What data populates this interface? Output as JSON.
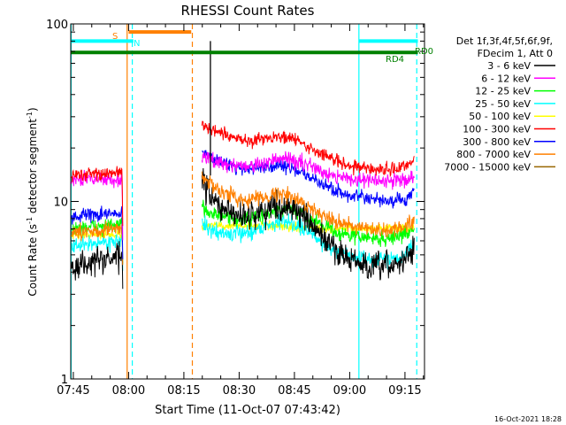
{
  "chart_data": {
    "type": "line",
    "title": "RHESSI Count Rates",
    "xlabel": "Start Time (11-Oct-07 07:43:42)",
    "ylabel_main": "Count Rate (s",
    "ylabel_sup1": "-1",
    "ylabel_mid": " detector segment",
    "ylabel_sup2": "-1",
    "ylabel_end": ")",
    "yscale": "log",
    "ylim": [
      1,
      100
    ],
    "xlim_minutes": [
      -0.7,
      95.3
    ],
    "x_ticks": [
      {
        "label": "07:45",
        "minute": 0
      },
      {
        "label": "08:00",
        "minute": 15
      },
      {
        "label": "08:15",
        "minute": 30
      },
      {
        "label": "08:30",
        "minute": 45
      },
      {
        "label": "08:45",
        "minute": 60
      },
      {
        "label": "09:00",
        "minute": 75
      },
      {
        "label": "09:15",
        "minute": 90
      }
    ],
    "y_ticks": [
      {
        "label": "1",
        "value": 1
      },
      {
        "label": "10",
        "value": 10
      },
      {
        "label": "100",
        "value": 100
      }
    ],
    "legend": {
      "position": "top-right",
      "header1": "Det 1f,3f,4f,5f,6f,9f,",
      "header2": "FDecim 1, Att 0"
    },
    "series": [
      {
        "name": "3 - 6 keV",
        "color": "#000000",
        "base": 5.0,
        "noise": 0.13,
        "points": [
          [
            -0.5,
            4.2
          ],
          [
            5,
            4.6
          ],
          [
            12,
            4.8
          ],
          [
            13.2,
            5.0
          ],
          [
            13.5,
            2.7
          ],
          [
            17.5,
            null
          ],
          [
            34.8,
            13.5
          ],
          [
            36,
            12
          ],
          [
            38,
            10
          ],
          [
            42,
            8.6
          ],
          [
            48,
            8.3
          ],
          [
            54,
            9.3
          ],
          [
            58,
            9.5
          ],
          [
            61,
            8.8
          ],
          [
            65,
            7.1
          ],
          [
            70,
            5.6
          ],
          [
            75,
            4.7
          ],
          [
            80,
            4.2
          ],
          [
            85,
            4.3
          ],
          [
            89,
            4.5
          ],
          [
            91.5,
            5.2
          ],
          [
            92.6,
            5.6
          ]
        ]
      },
      {
        "name": "6 - 12 keV",
        "color": "#ff00ff",
        "base": 13.0,
        "noise": 0.07,
        "points": [
          [
            -0.5,
            13.2
          ],
          [
            5,
            13.5
          ],
          [
            12,
            13.2
          ],
          [
            13.2,
            13.5
          ],
          [
            13.5,
            3.6
          ],
          [
            17.5,
            null
          ],
          [
            34.8,
            18
          ],
          [
            37,
            17.2
          ],
          [
            42,
            16.2
          ],
          [
            48,
            15.8
          ],
          [
            54,
            16.8
          ],
          [
            58,
            17.4
          ],
          [
            62,
            16.5
          ],
          [
            67,
            15
          ],
          [
            72,
            13.8
          ],
          [
            78,
            13.2
          ],
          [
            84,
            12.9
          ],
          [
            90,
            13.3
          ],
          [
            92.6,
            14
          ]
        ]
      },
      {
        "name": "12 - 25 keV",
        "color": "#00ff00",
        "base": 7.5,
        "noise": 0.07,
        "points": [
          [
            -0.5,
            7.0
          ],
          [
            5,
            7.2
          ],
          [
            12,
            7.3
          ],
          [
            13.2,
            7.4
          ],
          [
            13.5,
            3.4
          ],
          [
            17.5,
            null
          ],
          [
            34.8,
            9.5
          ],
          [
            37,
            8.7
          ],
          [
            42,
            8.0
          ],
          [
            48,
            7.9
          ],
          [
            54,
            8.7
          ],
          [
            58,
            9.0
          ],
          [
            62,
            8.5
          ],
          [
            67,
            7.6
          ],
          [
            72,
            6.6
          ],
          [
            78,
            6.3
          ],
          [
            84,
            6.1
          ],
          [
            90,
            6.5
          ],
          [
            92.6,
            7.2
          ]
        ]
      },
      {
        "name": "25 - 50 keV",
        "color": "#00ffff",
        "base": 6.0,
        "noise": 0.07,
        "points": [
          [
            -0.5,
            5.5
          ],
          [
            5,
            5.8
          ],
          [
            12,
            6.0
          ],
          [
            13.2,
            6.2
          ],
          [
            13.5,
            3.3
          ],
          [
            17.5,
            null
          ],
          [
            34.8,
            7.5
          ],
          [
            37,
            6.9
          ],
          [
            42,
            6.5
          ],
          [
            48,
            6.7
          ],
          [
            54,
            7.5
          ],
          [
            58,
            7.8
          ],
          [
            62,
            7.1
          ],
          [
            67,
            6.0
          ],
          [
            72,
            5.1
          ],
          [
            78,
            4.8
          ],
          [
            84,
            4.7
          ],
          [
            90,
            5.0
          ],
          [
            92.6,
            5.7
          ]
        ]
      },
      {
        "name": "50 - 100 keV",
        "color": "#ffff00",
        "base": 6.5,
        "noise": 0.04,
        "points": [
          [
            -0.5,
            6.5
          ],
          [
            13.2,
            6.5
          ],
          [
            17.5,
            null
          ],
          [
            34.8,
            7.3
          ],
          [
            50,
            7.3
          ],
          [
            70,
            7.0
          ],
          [
            92.6,
            7.1
          ]
        ]
      },
      {
        "name": "100 - 300 keV",
        "color": "#ff0000",
        "base": 14.0,
        "noise": 0.06,
        "points": [
          [
            -0.5,
            14.0
          ],
          [
            5,
            14.3
          ],
          [
            12,
            14.5
          ],
          [
            13.2,
            14.8
          ],
          [
            13.5,
            4.2
          ],
          [
            17.5,
            null
          ],
          [
            34.8,
            28
          ],
          [
            36,
            26
          ],
          [
            40,
            24
          ],
          [
            44,
            22.5
          ],
          [
            48,
            22
          ],
          [
            52,
            22.8
          ],
          [
            56,
            23.3
          ],
          [
            60,
            22.3
          ],
          [
            65,
            19.5
          ],
          [
            70,
            17.5
          ],
          [
            75,
            16
          ],
          [
            80,
            15.3
          ],
          [
            85,
            15.0
          ],
          [
            90,
            15.6
          ],
          [
            92.6,
            17.5
          ]
        ]
      },
      {
        "name": "300 - 800 keV",
        "color": "#0000ff",
        "base": 8.5,
        "noise": 0.06,
        "points": [
          [
            -0.5,
            8.2
          ],
          [
            5,
            8.4
          ],
          [
            12,
            8.5
          ],
          [
            13.2,
            8.6
          ],
          [
            13.5,
            3.5
          ],
          [
            17.5,
            null
          ],
          [
            34.8,
            20
          ],
          [
            36,
            18.2
          ],
          [
            40,
            16.8
          ],
          [
            44,
            15.6
          ],
          [
            48,
            15.2
          ],
          [
            52,
            15.6
          ],
          [
            56,
            16.1
          ],
          [
            60,
            15.2
          ],
          [
            65,
            13.3
          ],
          [
            70,
            11.8
          ],
          [
            75,
            10.8
          ],
          [
            80,
            10.3
          ],
          [
            85,
            10.0
          ],
          [
            90,
            10.2
          ],
          [
            92.6,
            11.2
          ]
        ]
      },
      {
        "name": "800 - 7000 keV",
        "color": "#ff8000",
        "base": 7.0,
        "noise": 0.07,
        "points": [
          [
            -0.5,
            6.6
          ],
          [
            5,
            6.8
          ],
          [
            12,
            7.0
          ],
          [
            13.2,
            7.1
          ],
          [
            13.5,
            3.4
          ],
          [
            17.5,
            null
          ],
          [
            34.8,
            14.5
          ],
          [
            36,
            13
          ],
          [
            40,
            11.5
          ],
          [
            44,
            10.5
          ],
          [
            48,
            10.2
          ],
          [
            52,
            10.7
          ],
          [
            56,
            11.1
          ],
          [
            60,
            10.4
          ],
          [
            65,
            9.0
          ],
          [
            70,
            8.0
          ],
          [
            75,
            7.3
          ],
          [
            80,
            6.9
          ],
          [
            85,
            6.8
          ],
          [
            90,
            7.2
          ],
          [
            92.6,
            8.0
          ]
        ]
      },
      {
        "name": "7000 - 15000 keV",
        "color": "#996600",
        "base": 0,
        "noise": 0,
        "points": []
      }
    ],
    "annotations": [
      {
        "text": "S",
        "color": "#ff8000"
      },
      {
        "text": "N",
        "color": "#00ffff"
      },
      {
        "text": "RD0",
        "color": "#008000"
      },
      {
        "text": "RD4",
        "color": "#008000"
      }
    ],
    "spike": {
      "minute": 37.2,
      "peak": 80,
      "from": 14
    },
    "bars": [
      {
        "label": "S",
        "color": "#ff8000",
        "start": 15,
        "end": 32,
        "level": 90
      },
      {
        "label": "N",
        "color": "#00ffff",
        "start": -0.7,
        "end": 16.3,
        "level": 80
      },
      {
        "label": "N",
        "color": "#00ffff",
        "start": 77.5,
        "end": 93.5,
        "level": 80
      },
      {
        "label": "RD",
        "color": "#008000",
        "start": -0.7,
        "end": 93.5,
        "level": 69
      }
    ],
    "vlines": [
      {
        "minute": -0.6,
        "color": "#00ffff",
        "dashed": false
      },
      {
        "minute": 14.6,
        "color": "#ff8000",
        "dashed": false
      },
      {
        "minute": 16.0,
        "color": "#00ffff",
        "dashed": true
      },
      {
        "minute": 32.3,
        "color": "#ff8000",
        "dashed": true
      },
      {
        "minute": 77.5,
        "color": "#00ffff",
        "dashed": false
      },
      {
        "minute": 93.2,
        "color": "#00ffff",
        "dashed": true
      }
    ]
  },
  "footer": {
    "date": "16-Oct-2021 18:28"
  }
}
